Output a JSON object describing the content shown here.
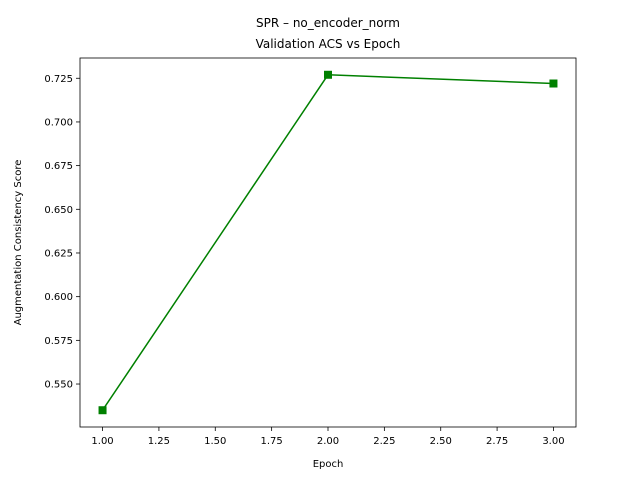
{
  "chart_data": {
    "type": "line",
    "title": "SPR – no_encoder_norm",
    "subtitle": "Validation ACS vs Epoch",
    "xlabel": "Epoch",
    "ylabel": "Augmentation Consistency Score",
    "x": [
      1,
      2,
      3
    ],
    "series": [
      {
        "values": [
          0.535,
          0.727,
          0.722
        ],
        "color": "#008000",
        "marker": "square"
      }
    ],
    "xlim": [
      0.9,
      3.1
    ],
    "ylim": [
      0.5254,
      0.7366
    ],
    "x_ticks": [
      "1.00",
      "1.25",
      "1.50",
      "1.75",
      "2.00",
      "2.25",
      "2.50",
      "2.75",
      "3.00"
    ],
    "y_ticks": [
      "0.550",
      "0.575",
      "0.600",
      "0.625",
      "0.650",
      "0.675",
      "0.700",
      "0.725"
    ],
    "grid": false,
    "legend": "none"
  }
}
